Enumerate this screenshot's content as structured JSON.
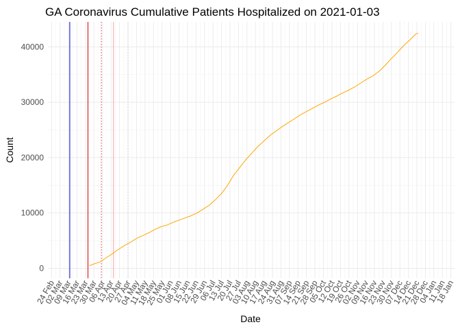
{
  "chart_data": {
    "type": "line",
    "title": "GA Coronavirus Cumulative Patients Hospitalized on 2021-01-03",
    "xlabel": "Date",
    "ylabel": "Count",
    "ylim": [
      -1800,
      44500
    ],
    "yticks": [
      0,
      10000,
      20000,
      30000,
      40000
    ],
    "ytick_labels": [
      "0",
      "10000",
      "20000",
      "30000",
      "40000"
    ],
    "x_start_date": "2020-02-24",
    "x_domain_days": [
      -3,
      332
    ],
    "xtick_labels": [
      "24 Feb",
      "02 Mar",
      "09 Mar",
      "16 Mar",
      "23 Mar",
      "30 Mar",
      "06 Apr",
      "13 Apr",
      "20 Apr",
      "27 Apr",
      "04 May",
      "11 May",
      "18 May",
      "25 May",
      "01 Jun",
      "08 Jun",
      "15 Jun",
      "22 Jun",
      "29 Jun",
      "06 Jul",
      "13 Jul",
      "20 Jul",
      "27 Jul",
      "03 Aug",
      "10 Aug",
      "17 Aug",
      "24 Aug",
      "31 Aug",
      "07 Sep",
      "14 Sep",
      "21 Sep",
      "28 Sep",
      "05 Oct",
      "12 Oct",
      "19 Oct",
      "26 Oct",
      "02 Nov",
      "09 Nov",
      "16 Nov",
      "23 Nov",
      "30 Nov",
      "07 Dec",
      "14 Dec",
      "21 Dec",
      "28 Dec",
      "04 Jan",
      "11 Jan",
      "18 Jan"
    ],
    "grid": true,
    "series": [
      {
        "name": "Cumulative Patients Hospitalized",
        "color": "#FFA500",
        "points": [
          {
            "day": 31,
            "value": 450
          },
          {
            "day": 35,
            "value": 800
          },
          {
            "day": 40,
            "value": 1150
          },
          {
            "day": 45,
            "value": 1900
          },
          {
            "day": 50,
            "value": 2600
          },
          {
            "day": 55,
            "value": 3400
          },
          {
            "day": 60,
            "value": 4100
          },
          {
            "day": 65,
            "value": 4700
          },
          {
            "day": 70,
            "value": 5400
          },
          {
            "day": 75,
            "value": 5900
          },
          {
            "day": 80,
            "value": 6400
          },
          {
            "day": 85,
            "value": 7000
          },
          {
            "day": 90,
            "value": 7500
          },
          {
            "day": 95,
            "value": 7800
          },
          {
            "day": 100,
            "value": 8300
          },
          {
            "day": 105,
            "value": 8700
          },
          {
            "day": 110,
            "value": 9100
          },
          {
            "day": 115,
            "value": 9500
          },
          {
            "day": 120,
            "value": 10000
          },
          {
            "day": 125,
            "value": 10700
          },
          {
            "day": 130,
            "value": 11400
          },
          {
            "day": 135,
            "value": 12400
          },
          {
            "day": 140,
            "value": 13500
          },
          {
            "day": 145,
            "value": 15000
          },
          {
            "day": 150,
            "value": 16800
          },
          {
            "day": 155,
            "value": 18200
          },
          {
            "day": 160,
            "value": 19600
          },
          {
            "day": 165,
            "value": 20800
          },
          {
            "day": 170,
            "value": 22000
          },
          {
            "day": 175,
            "value": 23000
          },
          {
            "day": 180,
            "value": 24000
          },
          {
            "day": 185,
            "value": 24800
          },
          {
            "day": 190,
            "value": 25600
          },
          {
            "day": 195,
            "value": 26300
          },
          {
            "day": 200,
            "value": 27000
          },
          {
            "day": 205,
            "value": 27700
          },
          {
            "day": 210,
            "value": 28300
          },
          {
            "day": 215,
            "value": 28900
          },
          {
            "day": 220,
            "value": 29500
          },
          {
            "day": 225,
            "value": 30000
          },
          {
            "day": 230,
            "value": 30600
          },
          {
            "day": 235,
            "value": 31100
          },
          {
            "day": 240,
            "value": 31700
          },
          {
            "day": 245,
            "value": 32200
          },
          {
            "day": 250,
            "value": 32800
          },
          {
            "day": 255,
            "value": 33500
          },
          {
            "day": 260,
            "value": 34200
          },
          {
            "day": 265,
            "value": 34800
          },
          {
            "day": 270,
            "value": 35600
          },
          {
            "day": 275,
            "value": 36700
          },
          {
            "day": 280,
            "value": 37900
          },
          {
            "day": 285,
            "value": 39000
          },
          {
            "day": 290,
            "value": 40200
          },
          {
            "day": 295,
            "value": 41200
          },
          {
            "day": 300,
            "value": 42300
          },
          {
            "day": 302,
            "value": 42500
          }
        ]
      }
    ],
    "vlines": [
      {
        "day": 15,
        "color": "#0000CD",
        "style": "solid"
      },
      {
        "day": 30,
        "color": "#CC0000",
        "style": "solid"
      },
      {
        "day": 41,
        "color": "#E03030",
        "style": "dotted"
      },
      {
        "day": 51,
        "color": "#F4A0A0",
        "style": "solid"
      },
      {
        "day": 63,
        "color": "#C8C8C8",
        "style": "dotted"
      }
    ]
  }
}
